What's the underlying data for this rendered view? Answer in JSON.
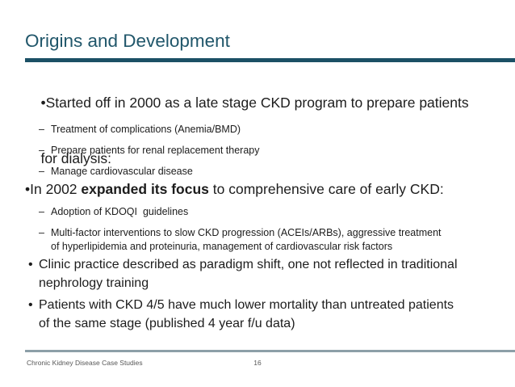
{
  "slide": {
    "title": "Origins and Development",
    "colors": {
      "title_text": "#20566A",
      "title_rule": "#1B5065",
      "body_text": "#1C1C1C",
      "footer_rule": "#8C9FA8",
      "footer_text": "#575757"
    },
    "content": {
      "sub_marker": "–",
      "bullet1": {
        "marker": "•",
        "line1": "Started off in 2000 as a late stage CKD program to prepare patients",
        "line2": "for dialysis:"
      },
      "sub1": [
        "Treatment of complications (Anemia/BMD)",
        "Prepare patients for renal replacement therapy",
        "Manage cardiovascular disease"
      ],
      "bullet2": {
        "marker": "•",
        "prefix": "In 2002 ",
        "bold": "expanded its focus",
        "suffix": " to comprehensive care of early CKD:"
      },
      "sub2a": "Adoption of KDOQI  guidelines",
      "sub2b_line1": "Multi-factor interventions to slow CKD progression (ACEIs/ARBs), aggressive treatment",
      "sub2b_line2": "of hyperlipidemia and proteinuria, management of cardiovascular risk factors",
      "bullet3": {
        "marker": "•",
        "line1": "Clinic practice described as paradigm shift, one not reflected in traditional",
        "line2": "nephrology training"
      },
      "bullet4": {
        "marker": "•",
        "line1": "Patients with CKD 4/5 have much lower mortality than untreated patients",
        "line2": "of the same stage (published 4 year f/u data)"
      }
    },
    "footer": {
      "left": "Chronic Kidney Disease Case Studies",
      "page": "16"
    }
  }
}
